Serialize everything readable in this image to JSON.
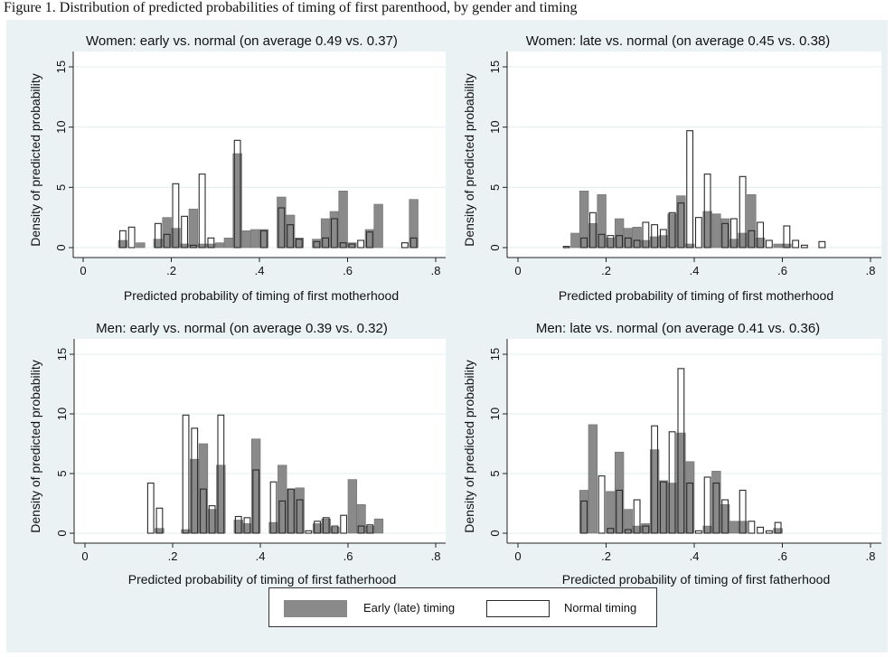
{
  "caption": "Figure 1. Distribution of predicted probabilities of timing of first parenthood, by gender and timing",
  "colors": {
    "early": "#8a8a8a",
    "normal": "#ffffff",
    "stroke": "#2a2a2a",
    "background": "#eaf2f3",
    "plot": "#ffffff",
    "grid": "#e3ecee"
  },
  "legend": {
    "early_label": "Early (late) timing",
    "normal_label": "Normal timing"
  },
  "chart_data": [
    {
      "type": "bar",
      "title": "Women: early vs. normal (on average 0.49 vs. 0.37)",
      "xlabel": "Predicted probability of timing of first motherhood",
      "ylabel": "Density of predicted probability",
      "xlim": [
        0,
        0.8
      ],
      "ylim": [
        0,
        15
      ],
      "bin_width": 0.02,
      "xtick_labels": [
        "0",
        ".2",
        ".4",
        ".6",
        ".8"
      ],
      "ytick_labels": [
        "0",
        "5",
        "10",
        "15"
      ],
      "series": [
        {
          "name": "Early (late) timing",
          "x": [
            0.09,
            0.13,
            0.17,
            0.19,
            0.21,
            0.23,
            0.25,
            0.27,
            0.29,
            0.31,
            0.33,
            0.35,
            0.37,
            0.39,
            0.41,
            0.45,
            0.47,
            0.49,
            0.53,
            0.55,
            0.57,
            0.59,
            0.61,
            0.65,
            0.67,
            0.75
          ],
          "values": [
            0.6,
            0.4,
            0.7,
            2.5,
            1.6,
            0.3,
            3.2,
            0.3,
            0.3,
            0.4,
            0.8,
            7.8,
            1.4,
            1.5,
            1.5,
            4.2,
            2.7,
            0.8,
            0.7,
            2.4,
            3.0,
            4.7,
            0.4,
            1.5,
            3.6,
            4.0
          ]
        },
        {
          "name": "Normal timing",
          "x": [
            0.09,
            0.11,
            0.17,
            0.19,
            0.21,
            0.23,
            0.25,
            0.27,
            0.29,
            0.35,
            0.41,
            0.45,
            0.47,
            0.49,
            0.53,
            0.55,
            0.57,
            0.59,
            0.61,
            0.63,
            0.65,
            0.73,
            0.75
          ],
          "values": [
            1.4,
            1.7,
            2.0,
            1.1,
            5.3,
            2.6,
            0.2,
            6.1,
            0.8,
            8.9,
            1.4,
            3.3,
            1.9,
            0.7,
            0.5,
            0.8,
            2.4,
            0.4,
            0.3,
            0.6,
            1.3,
            0.4,
            0.8
          ]
        }
      ]
    },
    {
      "type": "bar",
      "title": "Women: late vs. normal (on average 0.45 vs. 0.38)",
      "xlabel": "Predicted probability of timing of first motherhood",
      "ylabel": "Density of predicted probability",
      "xlim": [
        0,
        0.8
      ],
      "ylim": [
        0,
        15
      ],
      "bin_width": 0.02,
      "xtick_labels": [
        "0",
        ".2",
        ".4",
        ".6",
        ".8"
      ],
      "ytick_labels": [
        "0",
        "5",
        "10",
        "15"
      ],
      "series": [
        {
          "name": "Early (late) timing",
          "x": [
            0.13,
            0.15,
            0.17,
            0.19,
            0.21,
            0.23,
            0.25,
            0.27,
            0.29,
            0.31,
            0.33,
            0.35,
            0.37,
            0.39,
            0.43,
            0.45,
            0.47,
            0.49,
            0.51,
            0.53,
            0.55,
            0.59,
            0.61
          ],
          "values": [
            1.2,
            4.7,
            2.0,
            4.4,
            0.8,
            2.4,
            1.6,
            1.7,
            0.6,
            0.9,
            1.0,
            2.8,
            4.3,
            0.3,
            3.0,
            2.8,
            2.4,
            0.7,
            1.2,
            4.4,
            0.8,
            0.3,
            0.3
          ]
        },
        {
          "name": "Normal timing",
          "x": [
            0.11,
            0.15,
            0.17,
            0.19,
            0.21,
            0.23,
            0.25,
            0.27,
            0.29,
            0.31,
            0.33,
            0.35,
            0.37,
            0.39,
            0.41,
            0.43,
            0.47,
            0.49,
            0.51,
            0.53,
            0.55,
            0.57,
            0.61,
            0.63,
            0.65,
            0.69
          ],
          "values": [
            0.1,
            0.8,
            2.9,
            1.1,
            1.0,
            1.0,
            0.8,
            0.6,
            2.1,
            1.9,
            1.5,
            2.9,
            3.7,
            9.7,
            2.5,
            6.1,
            2.0,
            2.4,
            5.9,
            1.4,
            2.1,
            0.6,
            1.8,
            0.6,
            0.2,
            0.5
          ]
        }
      ]
    },
    {
      "type": "bar",
      "title": "Men: early vs. normal (on average 0.39 vs. 0.32)",
      "xlabel": "Predicted probability of timing of first fatherhood",
      "ylabel": "Density of predicted probability",
      "xlim": [
        0,
        0.8
      ],
      "ylim": [
        0,
        15
      ],
      "bin_width": 0.02,
      "xtick_labels": [
        "0",
        ".2",
        ".4",
        ".6",
        ".8"
      ],
      "ytick_labels": [
        "0",
        "5",
        "10",
        "15"
      ],
      "series": [
        {
          "name": "Early (late) timing",
          "x": [
            0.17,
            0.23,
            0.25,
            0.27,
            0.29,
            0.31,
            0.35,
            0.37,
            0.39,
            0.43,
            0.45,
            0.47,
            0.49,
            0.53,
            0.55,
            0.57,
            0.61,
            0.63,
            0.65,
            0.67
          ],
          "values": [
            0.4,
            0.3,
            6.2,
            7.5,
            2.0,
            5.7,
            1.1,
            0.8,
            7.9,
            0.9,
            5.7,
            3.7,
            3.8,
            0.8,
            1.2,
            0.5,
            4.5,
            2.4,
            0.6,
            1.2
          ]
        },
        {
          "name": "Normal timing",
          "x": [
            0.15,
            0.17,
            0.23,
            0.25,
            0.27,
            0.29,
            0.31,
            0.35,
            0.37,
            0.39,
            0.43,
            0.45,
            0.47,
            0.49,
            0.51,
            0.53,
            0.55,
            0.57,
            0.59,
            0.63,
            0.65
          ],
          "values": [
            4.2,
            2.1,
            9.9,
            8.8,
            3.7,
            2.3,
            9.9,
            1.4,
            1.3,
            5.3,
            4.3,
            2.7,
            3.7,
            2.8,
            0.2,
            1.0,
            1.3,
            0.6,
            1.5,
            0.6,
            0.7
          ]
        }
      ]
    },
    {
      "type": "bar",
      "title": "Men: late vs. normal (on average 0.41 vs. 0.36)",
      "xlabel": "Predicted probability of timing of first fatherhood",
      "ylabel": "Density of predicted probability",
      "xlim": [
        0,
        0.8
      ],
      "ylim": [
        0,
        15
      ],
      "bin_width": 0.02,
      "xtick_labels": [
        "0",
        ".2",
        ".4",
        ".6",
        ".8"
      ],
      "ytick_labels": [
        "0",
        "5",
        "10",
        "15"
      ],
      "series": [
        {
          "name": "Early (late) timing",
          "x": [
            0.15,
            0.17,
            0.21,
            0.23,
            0.25,
            0.27,
            0.29,
            0.31,
            0.33,
            0.35,
            0.37,
            0.39,
            0.43,
            0.45,
            0.47,
            0.49,
            0.51,
            0.59
          ],
          "values": [
            3.6,
            9.1,
            3.5,
            6.8,
            2.0,
            0.6,
            0.8,
            7.0,
            4.4,
            4.2,
            8.4,
            6.0,
            0.6,
            5.2,
            2.4,
            1.0,
            1.0,
            0.4
          ]
        },
        {
          "name": "Normal timing",
          "x": [
            0.15,
            0.19,
            0.21,
            0.23,
            0.25,
            0.27,
            0.29,
            0.31,
            0.33,
            0.35,
            0.37,
            0.39,
            0.41,
            0.43,
            0.45,
            0.47,
            0.51,
            0.53,
            0.55,
            0.57,
            0.59
          ],
          "values": [
            2.7,
            4.8,
            0.4,
            3.6,
            0.3,
            2.8,
            0.6,
            9.0,
            4.3,
            8.5,
            13.8,
            4.2,
            0.2,
            4.7,
            4.2,
            2.8,
            3.6,
            1.0,
            0.5,
            0.2,
            0.9
          ]
        }
      ]
    }
  ]
}
